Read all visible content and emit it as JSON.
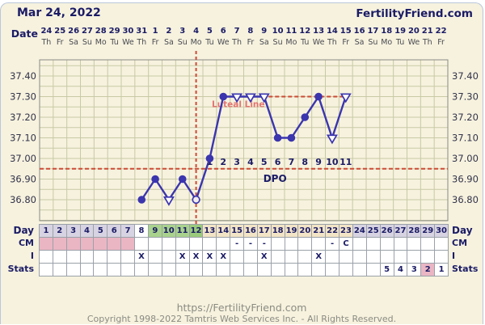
{
  "header": {
    "date_title": "Mar 24, 2022",
    "brand": "FertilityFriend.com"
  },
  "date_axis": {
    "label": "Date",
    "dates": [
      "24",
      "25",
      "26",
      "27",
      "28",
      "29",
      "30",
      "31",
      "1",
      "2",
      "3",
      "4",
      "5",
      "6",
      "7",
      "8",
      "9",
      "10",
      "11",
      "12",
      "13",
      "14",
      "15",
      "16",
      "17",
      "18",
      "19",
      "20",
      "21",
      "22"
    ],
    "weekdays": [
      "Th",
      "Fr",
      "Sa",
      "Su",
      "Mo",
      "Tu",
      "We",
      "Th",
      "Fr",
      "Sa",
      "Su",
      "Mo",
      "Tu",
      "We",
      "Th",
      "Fr",
      "Sa",
      "Su",
      "Mo",
      "Tu",
      "We",
      "Th",
      "Fr",
      "Sa",
      "Su",
      "Mo",
      "Tu",
      "We",
      "Th",
      "Fr"
    ]
  },
  "chart_data": {
    "type": "line",
    "title": "Basal body temperature by cycle day",
    "y_ticks": [
      "37.40",
      "37.30",
      "37.20",
      "37.10",
      "37.00",
      "36.90",
      "36.80"
    ],
    "ylim": [
      36.7,
      37.48
    ],
    "days_total": 30,
    "series": [
      {
        "name": "temperature",
        "points": [
          {
            "day": 8,
            "temp": 36.8,
            "marker": "filled"
          },
          {
            "day": 9,
            "temp": 36.9,
            "marker": "filled"
          },
          {
            "day": 10,
            "temp": 36.8,
            "marker": "triangle"
          },
          {
            "day": 11,
            "temp": 36.9,
            "marker": "filled"
          },
          {
            "day": 12,
            "temp": 36.8,
            "marker": "open"
          },
          {
            "day": 13,
            "temp": 37.0,
            "marker": "filled"
          },
          {
            "day": 14,
            "temp": 37.3,
            "marker": "filled"
          },
          {
            "day": 15,
            "temp": 37.3,
            "marker": "triangle"
          },
          {
            "day": 16,
            "temp": 37.3,
            "marker": "triangle"
          },
          {
            "day": 17,
            "temp": 37.3,
            "marker": "triangle"
          },
          {
            "day": 18,
            "temp": 37.1,
            "marker": "filled"
          },
          {
            "day": 19,
            "temp": 37.1,
            "marker": "filled"
          },
          {
            "day": 20,
            "temp": 37.2,
            "marker": "filled"
          },
          {
            "day": 21,
            "temp": 37.3,
            "marker": "filled"
          },
          {
            "day": 22,
            "temp": 37.1,
            "marker": "triangle"
          },
          {
            "day": 23,
            "temp": 37.3,
            "marker": "triangle"
          }
        ]
      }
    ],
    "coverline_temp": 36.95,
    "ovulation_day": 12,
    "luteal_line": {
      "temp": 37.3,
      "from_day": 14,
      "to_day": 23,
      "label": "Luteal Line"
    },
    "dpo": {
      "text": "DPO",
      "labels": [
        {
          "day": 13,
          "n": "1"
        },
        {
          "day": 14,
          "n": "2"
        },
        {
          "day": 15,
          "n": "3"
        },
        {
          "day": 16,
          "n": "4"
        },
        {
          "day": 17,
          "n": "5"
        },
        {
          "day": 18,
          "n": "6"
        },
        {
          "day": 19,
          "n": "7"
        },
        {
          "day": 20,
          "n": "8"
        },
        {
          "day": 21,
          "n": "9"
        },
        {
          "day": 22,
          "n": "10"
        },
        {
          "day": 23,
          "n": "11"
        }
      ]
    }
  },
  "table": {
    "row_labels": [
      "Day",
      "CM",
      "I",
      "Stats"
    ],
    "day_row": [
      "1",
      "2",
      "3",
      "4",
      "5",
      "6",
      "7",
      "8",
      "9",
      "10",
      "11",
      "12",
      "13",
      "14",
      "15",
      "16",
      "17",
      "18",
      "19",
      "20",
      "21",
      "22",
      "23",
      "24",
      "25",
      "26",
      "27",
      "28",
      "29",
      "30"
    ],
    "day_colors": [
      "#d7d3e2",
      "#d7d3e2",
      "#d7d3e2",
      "#d7d3e2",
      "#d7d3e2",
      "#d7d3e2",
      "#d7d3e2",
      "#ffffff",
      "#a9d28c",
      "#a9d28c",
      "#a9d28c",
      "#9aca7c",
      "#f2e4c6",
      "#f2e4c6",
      "#f2e4c6",
      "#f2e4c6",
      "#f2e4c6",
      "#f2e4c6",
      "#f2e4c6",
      "#f2e4c6",
      "#f2e4c6",
      "#f2e4c6",
      "#f2e4c6",
      "#d7d3e2",
      "#d7d3e2",
      "#d7d3e2",
      "#d7d3e2",
      "#d7d3e2",
      "#d7d3e2",
      "#d7d3e2"
    ],
    "cm_row": {
      "pink_days": [
        1,
        2,
        3,
        4,
        5,
        6,
        7
      ],
      "marks": {
        "15": "-",
        "16": "-",
        "17": "-",
        "22": "-",
        "23": "C"
      }
    },
    "i_row": {
      "mark": "X",
      "days": [
        8,
        11,
        12,
        13,
        14,
        17,
        21
      ]
    },
    "stats_row": {
      "marks": {
        "26": "5",
        "27": "4",
        "28": "3",
        "29": "2",
        "30": "1"
      },
      "pink_days": [
        29
      ]
    }
  },
  "footer": {
    "url": "https://FertilityFriend.com",
    "copyright": "Copyright 1998-2022 Tamtris Web Services Inc. - All Rights Reserved."
  },
  "colors": {
    "navy": "#1b1b66",
    "red": "#cd4a36",
    "red_label": "#e06060",
    "line": "#3b35ae",
    "grid": "#c9c9a5",
    "plot_border": "#8a8a86",
    "cell_border": "#9aa1a8",
    "pink": "#eab6c4",
    "open_fill": "#f3ecec",
    "tick_text": "#33334a",
    "white": "#ffffff"
  }
}
